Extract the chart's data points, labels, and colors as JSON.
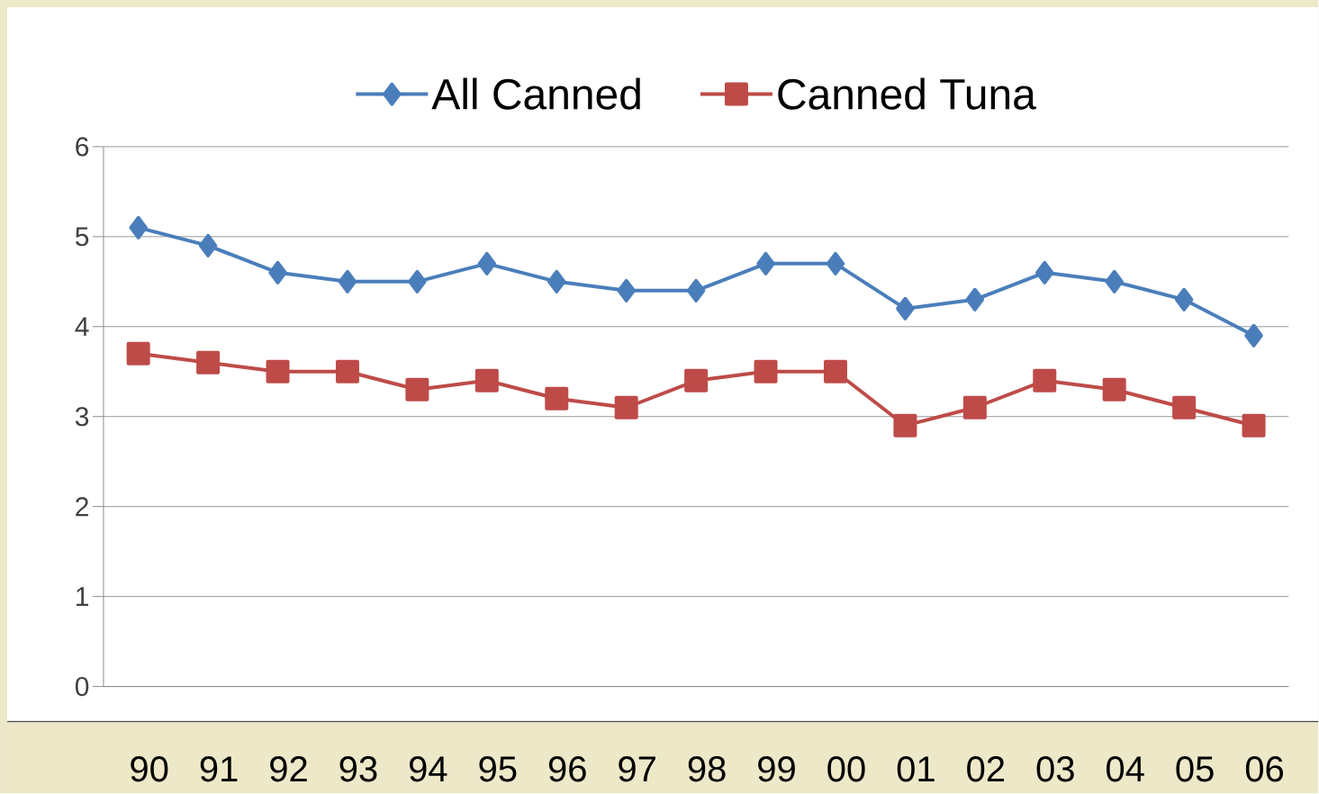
{
  "chart_data": {
    "type": "line",
    "categories": [
      "90",
      "91",
      "92",
      "93",
      "94",
      "95",
      "96",
      "97",
      "98",
      "99",
      "00",
      "01",
      "02",
      "03",
      "04",
      "05",
      "06"
    ],
    "series": [
      {
        "name": "All Canned",
        "color": "#4a7ebb",
        "marker": "diamond",
        "values": [
          5.1,
          4.9,
          4.6,
          4.5,
          4.5,
          4.7,
          4.5,
          4.4,
          4.4,
          4.7,
          4.7,
          4.2,
          4.3,
          4.6,
          4.5,
          4.3,
          3.9
        ]
      },
      {
        "name": "Canned Tuna",
        "color": "#be4b48",
        "marker": "square",
        "values": [
          3.7,
          3.6,
          3.5,
          3.5,
          3.3,
          3.4,
          3.2,
          3.1,
          3.4,
          3.5,
          3.5,
          2.9,
          3.1,
          3.4,
          3.3,
          3.1,
          2.9
        ]
      }
    ],
    "ylim": [
      0,
      6
    ],
    "yticks": [
      0,
      1,
      2,
      3,
      4,
      5,
      6
    ],
    "grid": "y",
    "legend": "top",
    "line_style": "solid"
  }
}
